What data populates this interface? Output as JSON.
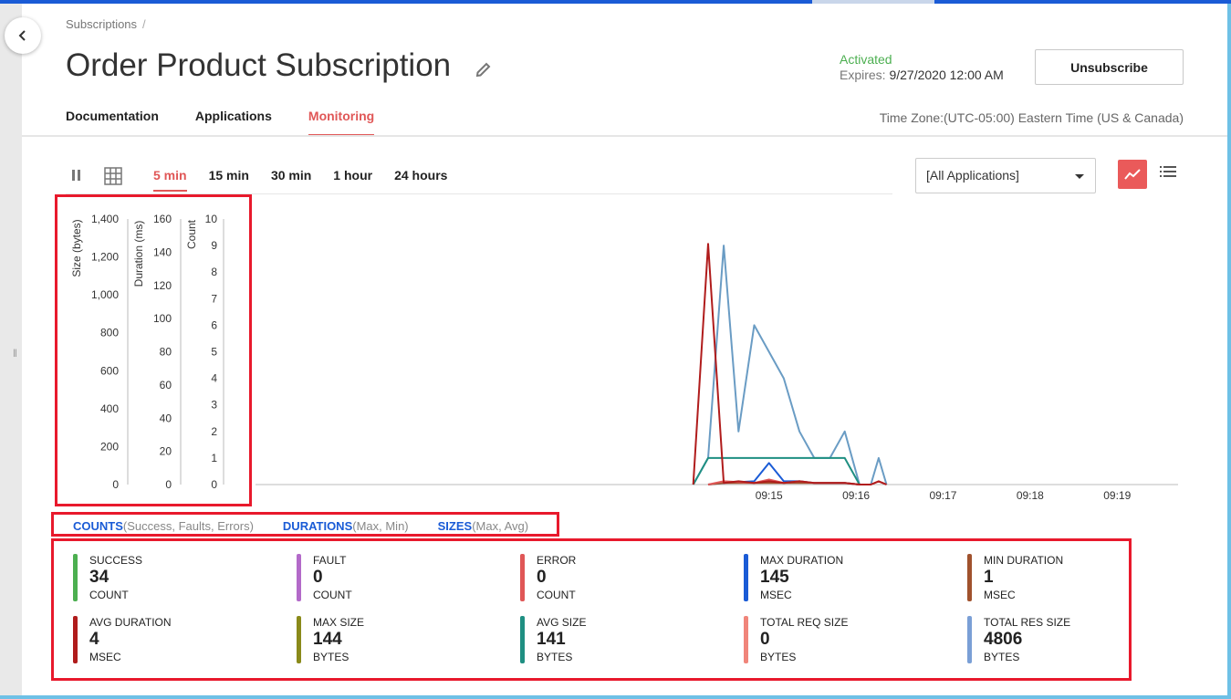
{
  "breadcrumb": {
    "item": "Subscriptions",
    "separator": "/"
  },
  "page": {
    "title": "Order Product Subscription",
    "status": "Activated",
    "expires_label": "Expires:",
    "expires_value": "9/27/2020 12:00 AM",
    "unsubscribe_label": "Unsubscribe",
    "timezone": "Time Zone:(UTC-05:00) Eastern Time (US & Canada)"
  },
  "tabs": [
    {
      "label": "Documentation",
      "active": false
    },
    {
      "label": "Applications",
      "active": false
    },
    {
      "label": "Monitoring",
      "active": true
    }
  ],
  "toolbar": {
    "ranges": [
      {
        "label": "5 min",
        "active": true
      },
      {
        "label": "15 min",
        "active": false
      },
      {
        "label": "30 min",
        "active": false
      },
      {
        "label": "1 hour",
        "active": false
      },
      {
        "label": "24 hours",
        "active": false
      }
    ],
    "application_filter": "[All Applications]",
    "icons": [
      "pause-icon",
      "grid-icon",
      "line-chart-icon",
      "list-icon"
    ]
  },
  "chart_data": {
    "type": "line",
    "axes": [
      {
        "label": "Size (bytes)",
        "ticks": [
          "1,400",
          "1,200",
          "1,000",
          "800",
          "600",
          "400",
          "200",
          "0"
        ],
        "range": [
          0,
          1400
        ]
      },
      {
        "label": "Duration (ms)",
        "ticks": [
          "160",
          "140",
          "120",
          "100",
          "80",
          "60",
          "40",
          "20",
          "0"
        ],
        "range": [
          0,
          160
        ]
      },
      {
        "label": "Count",
        "ticks": [
          "10",
          "9",
          "8",
          "7",
          "6",
          "5",
          "4",
          "3",
          "2",
          "1",
          "0"
        ],
        "range": [
          0,
          10
        ]
      }
    ],
    "x_ticks": [
      "09:15",
      "09:16",
      "09:17",
      "09:18",
      "09:19"
    ],
    "x_range": [
      9.1,
      19.7
    ],
    "series": [
      {
        "color": "#6a9cc4",
        "axis": 2,
        "x": [
          14.13,
          14.3,
          14.48,
          14.65,
          14.83,
          15.0,
          15.17,
          15.35,
          15.52,
          15.7,
          15.87,
          16.04,
          16.17,
          16.26,
          16.35
        ],
        "y": [
          0,
          1,
          9,
          2,
          6,
          5,
          4,
          2,
          1,
          1,
          2,
          0,
          0,
          1,
          0
        ]
      },
      {
        "color": "#1f8f82",
        "axis": 2,
        "x": [
          14.13,
          14.3,
          15.87,
          16.04
        ],
        "y": [
          0,
          1,
          1,
          0
        ]
      },
      {
        "color": "#1a5bd6",
        "axis": 1,
        "x": [
          14.3,
          14.48,
          14.83,
          15.0,
          15.17,
          15.35,
          15.52,
          15.87,
          16.04
        ],
        "y": [
          0,
          1,
          2,
          13,
          2,
          2,
          1,
          1,
          0
        ]
      },
      {
        "color": "#a0522d",
        "axis": 1,
        "x": [
          14.3,
          14.48,
          15.0,
          15.35,
          15.87,
          16.04
        ],
        "y": [
          0,
          1,
          1,
          1,
          1,
          0
        ]
      },
      {
        "color": "#e05757",
        "axis": 1,
        "x": [
          14.3,
          14.48,
          14.83,
          15.0,
          15.17,
          15.35,
          15.52,
          15.87,
          16.04,
          16.17,
          16.26,
          16.35
        ],
        "y": [
          0,
          2,
          1,
          3,
          1,
          2,
          1,
          1,
          0,
          0,
          2,
          0
        ]
      },
      {
        "color": "#b01c1c",
        "axis": 1,
        "x": [
          14.13,
          14.3,
          14.48,
          14.65,
          14.83,
          15.0,
          15.17,
          15.35,
          15.52,
          15.87,
          16.04,
          16.17,
          16.26,
          16.35
        ],
        "y": [
          0,
          145,
          1,
          2,
          1,
          2,
          1,
          2,
          1,
          1,
          0,
          0,
          2,
          0
        ]
      }
    ]
  },
  "legend": [
    {
      "key": "COUNTS",
      "detail": "(Success, Faults, Errors)"
    },
    {
      "key": "DURATIONS",
      "detail": "(Max, Min)"
    },
    {
      "key": "SIZES",
      "detail": "(Max, Avg)"
    }
  ],
  "stats": [
    {
      "label": "SUCCESS",
      "value": "34",
      "unit": "COUNT",
      "color": "#4caf50"
    },
    {
      "label": "FAULT",
      "value": "0",
      "unit": "COUNT",
      "color": "#b36ac9"
    },
    {
      "label": "ERROR",
      "value": "0",
      "unit": "COUNT",
      "color": "#e05757"
    },
    {
      "label": "MAX DURATION",
      "value": "145",
      "unit": "MSEC",
      "color": "#1a5bd6"
    },
    {
      "label": "MIN DURATION",
      "value": "1",
      "unit": "MSEC",
      "color": "#a0522d"
    },
    {
      "label": "AVG DURATION",
      "value": "4",
      "unit": "MSEC",
      "color": "#b01c1c"
    },
    {
      "label": "MAX SIZE",
      "value": "144",
      "unit": "BYTES",
      "color": "#8a8a1a"
    },
    {
      "label": "AVG SIZE",
      "value": "141",
      "unit": "BYTES",
      "color": "#1f8f82"
    },
    {
      "label": "TOTAL REQ SIZE",
      "value": "0",
      "unit": "BYTES",
      "color": "#f0857a"
    },
    {
      "label": "TOTAL RES SIZE",
      "value": "4806",
      "unit": "BYTES",
      "color": "#7a9fd6"
    }
  ]
}
